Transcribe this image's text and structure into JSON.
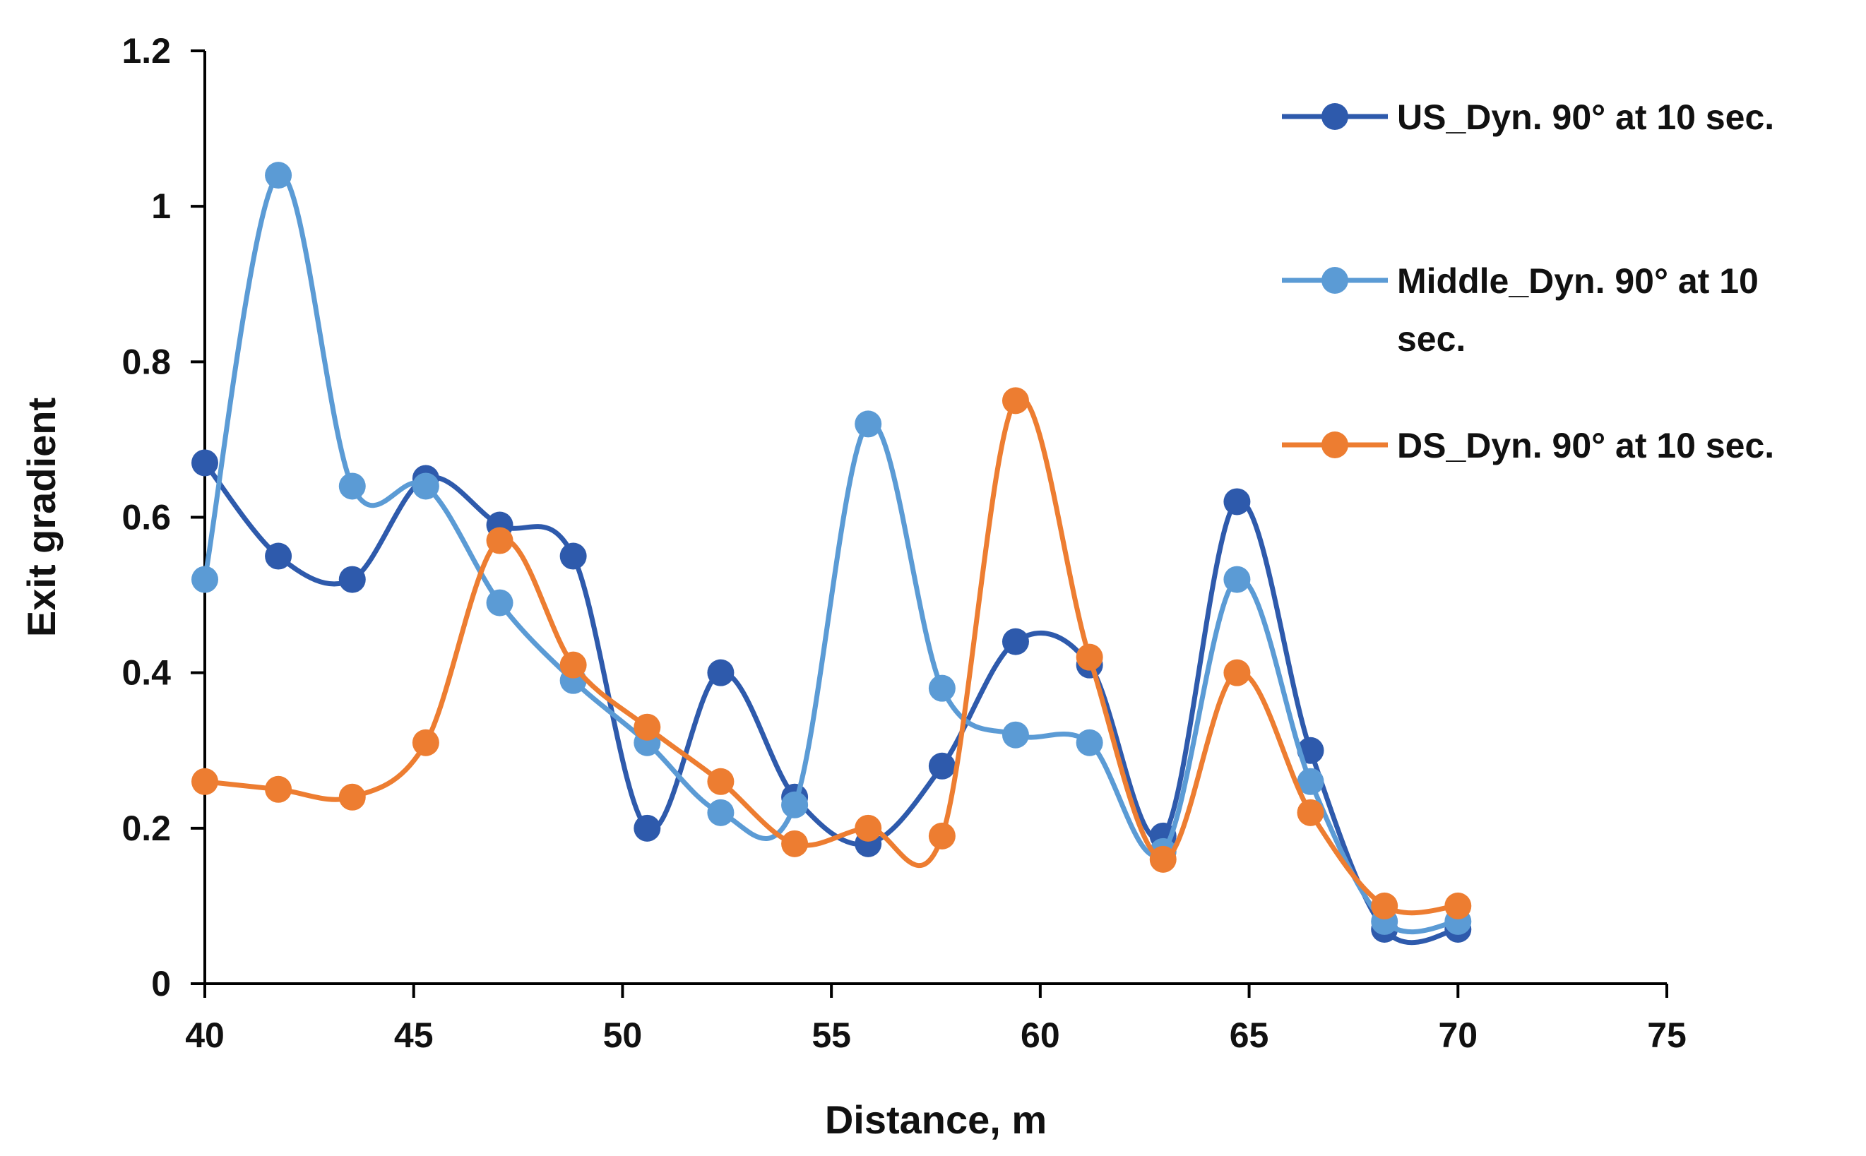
{
  "chart_data": {
    "type": "line",
    "title": "",
    "xlabel": "Distance, m",
    "ylabel": "Exit gradient",
    "xlim": [
      40,
      75
    ],
    "ylim": [
      0,
      1.2
    ],
    "x_ticks": [
      40,
      45,
      50,
      55,
      60,
      65,
      70,
      75
    ],
    "y_ticks": [
      0,
      0.2,
      0.4,
      0.6,
      0.8,
      1,
      1.2
    ],
    "x_tick_labels": [
      "40",
      "45",
      "50",
      "55",
      "60",
      "65",
      "70",
      "75"
    ],
    "y_tick_labels": [
      "0",
      "0.2",
      "0.4",
      "0.6",
      "0.8",
      "1",
      "1.2"
    ],
    "grid": false,
    "smooth": true,
    "legend_position": "top-right",
    "x": [
      40,
      41.76,
      43.53,
      45.29,
      47.06,
      48.82,
      50.59,
      52.35,
      54.12,
      55.88,
      57.65,
      59.41,
      61.18,
      62.94,
      64.71,
      66.47,
      68.24,
      70
    ],
    "series": [
      {
        "name": "US_Dyn. 90° at 10 sec.",
        "legend_lines": [
          "US_Dyn. 90° at 10 sec."
        ],
        "color": "#2e5aac",
        "values": [
          0.67,
          0.55,
          0.52,
          0.65,
          0.59,
          0.55,
          0.2,
          0.4,
          0.24,
          0.18,
          0.28,
          0.44,
          0.41,
          0.19,
          0.62,
          0.3,
          0.07,
          0.07
        ]
      },
      {
        "name": "Middle_Dyn. 90° at 10 sec.",
        "legend_lines": [
          "Middle_Dyn. 90° at 10",
          "sec."
        ],
        "color": "#5b9bd5",
        "values": [
          0.52,
          1.04,
          0.64,
          0.64,
          0.49,
          0.39,
          0.31,
          0.22,
          0.23,
          0.72,
          0.38,
          0.32,
          0.31,
          0.17,
          0.52,
          0.26,
          0.08,
          0.08
        ]
      },
      {
        "name": "DS_Dyn. 90° at 10 sec.",
        "legend_lines": [
          "DS_Dyn. 90° at 10 sec."
        ],
        "color": "#ed7d31",
        "values": [
          0.26,
          0.25,
          0.24,
          0.31,
          0.57,
          0.41,
          0.33,
          0.26,
          0.18,
          0.2,
          0.19,
          0.75,
          0.42,
          0.16,
          0.4,
          0.22,
          0.1,
          0.1
        ]
      }
    ]
  }
}
